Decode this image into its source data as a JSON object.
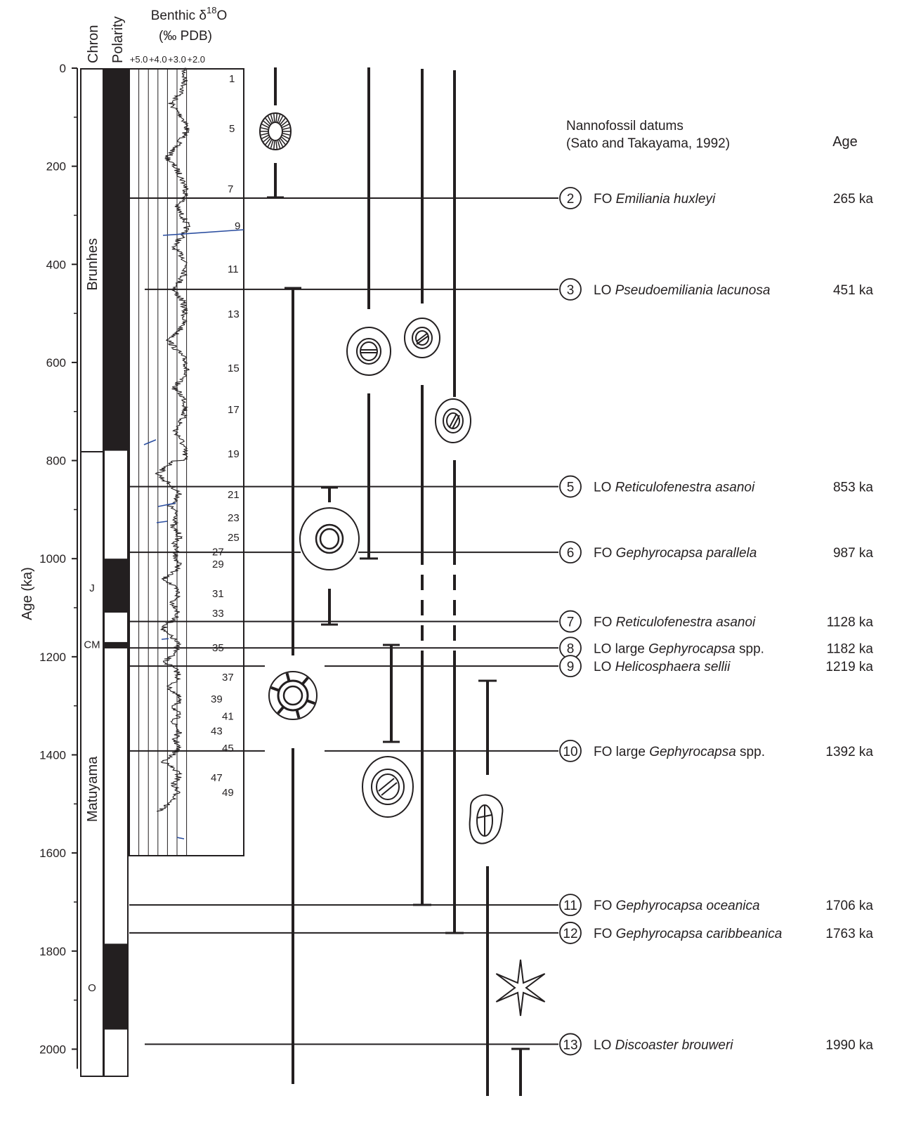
{
  "axis": {
    "label": "Age (ka)",
    "unit": "ka",
    "ticks": [
      0,
      200,
      400,
      600,
      800,
      1000,
      1200,
      1400,
      1600,
      1800,
      2000
    ],
    "range": [
      0,
      2050
    ]
  },
  "columns": {
    "chron": "Chron",
    "polarity": "Polarity",
    "isotope_title": "Benthic δ",
    "isotope_sup": "18",
    "isotope_suffix": "O",
    "isotope_units": "(‰ PDB)",
    "isotope_ticks": [
      "+5.0",
      "+4.0",
      "+3.0",
      "+2.0"
    ]
  },
  "chrons": [
    {
      "label": "Brunhes",
      "center_ka": 400
    },
    {
      "label": "J",
      "center_ka": 1060
    },
    {
      "label": "CM",
      "center_ka": 1175
    },
    {
      "label": "Matuyama",
      "center_ka": 1470
    },
    {
      "label": "O",
      "center_ka": 1875
    }
  ],
  "polarity_normal_ka": [
    [
      0,
      780
    ],
    [
      1000,
      1110
    ],
    [
      1170,
      1183
    ],
    [
      1785,
      1960
    ]
  ],
  "chron_boundary_ka": 780,
  "isotope_stages": [
    {
      "n": "1",
      "age": 20
    },
    {
      "n": "5",
      "age": 122
    },
    {
      "n": "7",
      "age": 245
    },
    {
      "n": "9",
      "age": 320
    },
    {
      "n": "11",
      "age": 408
    },
    {
      "n": "13",
      "age": 500
    },
    {
      "n": "15",
      "age": 610
    },
    {
      "n": "17",
      "age": 695
    },
    {
      "n": "19",
      "age": 785
    },
    {
      "n": "21",
      "age": 868
    },
    {
      "n": "23",
      "age": 915
    },
    {
      "n": "25",
      "age": 955
    },
    {
      "n": "27",
      "age": 985
    },
    {
      "n": "29",
      "age": 1010
    },
    {
      "n": "31",
      "age": 1070
    },
    {
      "n": "33",
      "age": 1110
    },
    {
      "n": "35",
      "age": 1180
    },
    {
      "n": "37",
      "age": 1240
    },
    {
      "n": "39",
      "age": 1285
    },
    {
      "n": "41",
      "age": 1320
    },
    {
      "n": "43",
      "age": 1350
    },
    {
      "n": "45",
      "age": 1385
    },
    {
      "n": "47",
      "age": 1445
    },
    {
      "n": "49",
      "age": 1475
    }
  ],
  "datums_header": {
    "line1": "Nannofossil datums",
    "line2": "(Sato and Takayama, 1992)",
    "age": "Age"
  },
  "datums": [
    {
      "num": "2",
      "event": "FO",
      "prefix": "",
      "taxon": "Emiliania huxleyi",
      "suffix": "",
      "age_label": "265 ka",
      "age": 265
    },
    {
      "num": "3",
      "event": "LO",
      "prefix": "",
      "taxon": "Pseudoemiliania lacunosa",
      "suffix": "",
      "age_label": "451 ka",
      "age": 451
    },
    {
      "num": "5",
      "event": "LO",
      "prefix": "",
      "taxon": "Reticulofenestra asanoi",
      "suffix": "",
      "age_label": "853 ka",
      "age": 853
    },
    {
      "num": "6",
      "event": "FO",
      "prefix": "",
      "taxon": "Gephyrocapsa parallela",
      "suffix": "",
      "age_label": "987 ka",
      "age": 987
    },
    {
      "num": "7",
      "event": "FO",
      "prefix": "",
      "taxon": "Reticulofenestra asanoi",
      "suffix": "",
      "age_label": "1128 ka",
      "age": 1128
    },
    {
      "num": "8",
      "event": "LO",
      "prefix": "large ",
      "taxon": "Gephyrocapsa",
      "suffix": " spp.",
      "age_label": "1182 ka",
      "age": 1182
    },
    {
      "num": "9",
      "event": "LO",
      "prefix": "",
      "taxon": "Helicosphaera sellii",
      "suffix": "",
      "age_label": "1219 ka",
      "age": 1219
    },
    {
      "num": "10",
      "event": "FO",
      "prefix": "large ",
      "taxon": "Gephyrocapsa",
      "suffix": " spp.",
      "age_label": "1392 ka",
      "age": 1392
    },
    {
      "num": "11",
      "event": "FO",
      "prefix": "",
      "taxon": "Gephyrocapsa oceanica",
      "suffix": "",
      "age_label": "1706 ka",
      "age": 1706
    },
    {
      "num": "12",
      "event": "FO",
      "prefix": "",
      "taxon": "Gephyrocapsa caribbeanica",
      "suffix": "",
      "age_label": "1763 ka",
      "age": 1763
    },
    {
      "num": "13",
      "event": "LO",
      "prefix": "",
      "taxon": "Discoaster brouweri",
      "suffix": "",
      "age_label": "1990 ka",
      "age": 1990
    }
  ],
  "colors": {
    "ink": "#231f20",
    "isotope_line": "#231f20",
    "isotope_blue": "#2b4ea0"
  }
}
